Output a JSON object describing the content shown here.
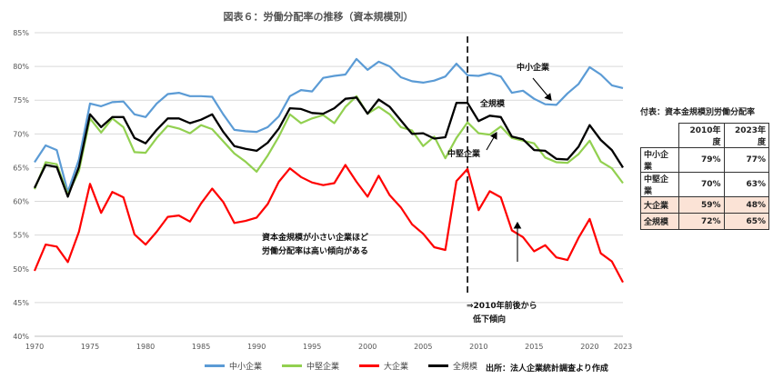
{
  "chart_data": {
    "type": "line",
    "title": "図表６：労働分配率の推移（資本規模別）",
    "x": [
      1970,
      1971,
      1972,
      1973,
      1974,
      1975,
      1976,
      1977,
      1978,
      1979,
      1980,
      1981,
      1982,
      1983,
      1984,
      1985,
      1986,
      1987,
      1988,
      1989,
      1990,
      1991,
      1992,
      1993,
      1994,
      1995,
      1996,
      1997,
      1998,
      1999,
      2000,
      2001,
      2002,
      2003,
      2004,
      2005,
      2006,
      2007,
      2008,
      2009,
      2010,
      2011,
      2012,
      2013,
      2014,
      2015,
      2016,
      2017,
      2018,
      2019,
      2020,
      2021,
      2022,
      2023
    ],
    "xticks": [
      "1970",
      "1975",
      "1980",
      "1985",
      "1990",
      "1995",
      "2000",
      "2005",
      "2010",
      "2015",
      "2020",
      "2023"
    ],
    "xtick_values": [
      1970,
      1975,
      1980,
      1985,
      1990,
      1995,
      2000,
      2005,
      2010,
      2015,
      2020,
      2023
    ],
    "ylim": [
      40,
      85
    ],
    "yticks": [
      "40%",
      "45%",
      "50%",
      "55%",
      "60%",
      "65%",
      "70%",
      "75%",
      "80%",
      "85%"
    ],
    "ytick_values": [
      40,
      45,
      50,
      55,
      60,
      65,
      70,
      75,
      80,
      85
    ],
    "grid": true,
    "legend_position": "bottom",
    "series": [
      {
        "name": "中小企業",
        "color": "#5b9bd5",
        "values": [
          65.8,
          68.3,
          67.6,
          61.4,
          66.2,
          74.5,
          74.1,
          74.7,
          74.8,
          72.9,
          72.5,
          74.5,
          75.9,
          76.1,
          75.6,
          75.6,
          75.5,
          72.9,
          70.6,
          70.4,
          70.3,
          71.0,
          72.6,
          75.6,
          76.5,
          76.3,
          78.3,
          78.6,
          78.8,
          81.1,
          79.5,
          80.7,
          80.0,
          78.4,
          77.8,
          77.6,
          77.9,
          78.5,
          80.4,
          78.7,
          78.6,
          79.0,
          78.5,
          76.1,
          76.4,
          75.2,
          74.4,
          74.3,
          76.0,
          77.4,
          79.9,
          78.8,
          77.2,
          76.8
        ]
      },
      {
        "name": "中堅企業",
        "color": "#92d050",
        "values": [
          61.8,
          65.8,
          65.5,
          61.0,
          64.5,
          72.3,
          70.2,
          72.3,
          71.0,
          67.3,
          67.2,
          69.4,
          71.2,
          70.8,
          70.1,
          71.3,
          70.7,
          68.9,
          67.1,
          65.9,
          64.4,
          66.8,
          69.6,
          72.9,
          71.6,
          72.3,
          72.8,
          71.6,
          74.0,
          75.6,
          73.0,
          74.0,
          72.9,
          71.0,
          70.5,
          68.2,
          69.6,
          66.4,
          69.4,
          71.7,
          70.1,
          69.9,
          71.1,
          69.4,
          69.0,
          68.6,
          66.5,
          65.8,
          65.7,
          67.0,
          69.0,
          65.9,
          64.9,
          62.7
        ]
      },
      {
        "name": "大企業",
        "color": "#ff0000",
        "values": [
          49.7,
          53.6,
          53.3,
          51.0,
          55.5,
          62.6,
          58.3,
          61.4,
          60.6,
          55.1,
          53.6,
          55.5,
          57.7,
          57.9,
          57.0,
          59.7,
          61.9,
          59.9,
          56.8,
          57.1,
          57.6,
          59.6,
          62.9,
          64.9,
          63.6,
          62.8,
          62.4,
          62.7,
          65.4,
          62.9,
          60.7,
          63.8,
          60.9,
          59.1,
          56.6,
          55.2,
          53.2,
          52.8,
          63.0,
          64.8,
          58.7,
          61.5,
          60.6,
          55.7,
          54.7,
          52.6,
          53.5,
          51.7,
          51.3,
          54.6,
          57.4,
          52.3,
          51.1,
          48.0
        ]
      },
      {
        "name": "全規模",
        "color": "#000000",
        "values": [
          62.0,
          65.4,
          65.1,
          60.7,
          65.1,
          72.9,
          71.0,
          72.5,
          72.5,
          69.4,
          68.6,
          70.6,
          72.3,
          72.3,
          71.6,
          72.1,
          72.9,
          70.3,
          68.2,
          67.8,
          67.5,
          68.7,
          70.8,
          73.8,
          73.7,
          73.1,
          73.0,
          73.8,
          75.2,
          75.4,
          73.0,
          75.1,
          74.0,
          72.0,
          70.0,
          70.1,
          69.3,
          69.5,
          74.6,
          74.6,
          71.9,
          72.7,
          72.5,
          69.6,
          69.2,
          67.6,
          67.5,
          66.3,
          66.2,
          68.1,
          71.3,
          69.1,
          67.6,
          65.0
        ]
      }
    ],
    "annotations": {
      "sme": "中小企業",
      "all_label": "全規模",
      "mid_label": "中堅企業",
      "note1": "資本金規模が小さい企業ほど",
      "note2": "労働分配率は高い傾向がある",
      "note3": "⇒2010年前後から",
      "note4": "低下傾向"
    },
    "source": "出所：法人企業統計調査より作成"
  },
  "side_table": {
    "title": "付表：資本金規模別労働分配率",
    "headers": [
      "2010年度",
      "2023年度"
    ],
    "rows": [
      {
        "label": "中小企業",
        "v2010": "79%",
        "v2023": "77%"
      },
      {
        "label": "中堅企業",
        "v2010": "70%",
        "v2023": "63%"
      },
      {
        "label": "大企業",
        "v2010": "59%",
        "v2023": "48%"
      },
      {
        "label": "全規模",
        "v2010": "72%",
        "v2023": "65%"
      }
    ]
  }
}
